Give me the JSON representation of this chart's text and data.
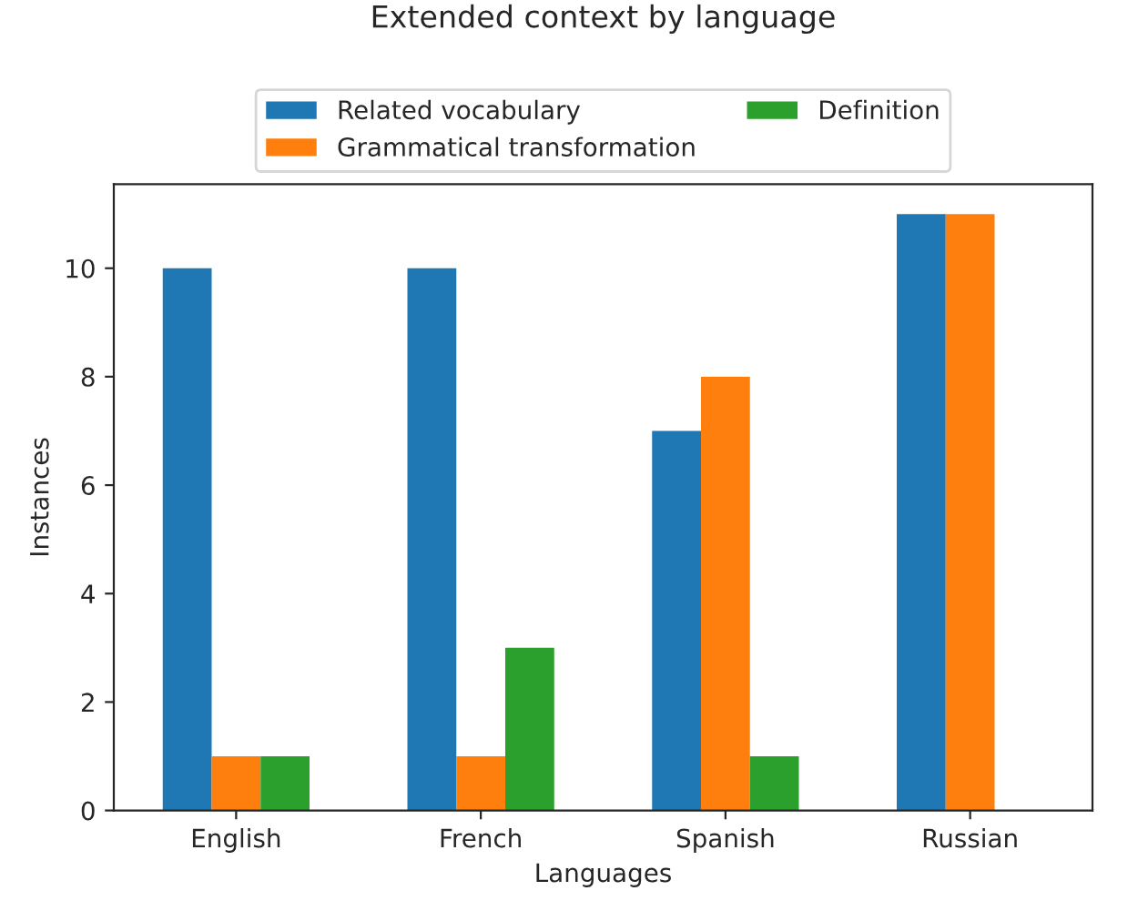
{
  "chart_data": {
    "type": "bar",
    "title": "Extended context by language",
    "xlabel": "Languages",
    "ylabel": "Instances",
    "categories": [
      "English",
      "French",
      "Spanish",
      "Russian"
    ],
    "series": [
      {
        "name": "Related vocabulary",
        "color": "#1f77b4",
        "values": [
          10,
          10,
          7,
          11
        ]
      },
      {
        "name": "Grammatical transformation",
        "color": "#ff7f0e",
        "values": [
          1,
          1,
          8,
          11
        ]
      },
      {
        "name": "Definition",
        "color": "#2ca02c",
        "values": [
          1,
          3,
          1,
          null
        ]
      }
    ],
    "ylim": [
      0,
      11.55
    ],
    "yticks": [
      0,
      2,
      4,
      6,
      8,
      10
    ],
    "grid": false,
    "legend": "top"
  }
}
